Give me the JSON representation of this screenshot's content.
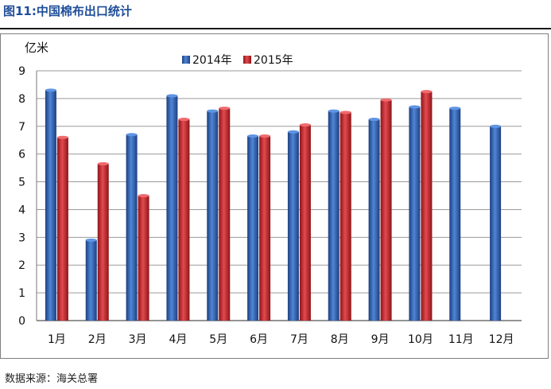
{
  "figure": {
    "title": "图11:中国棉布出口统计",
    "source": "数据来源：海关总署"
  },
  "colors": {
    "title": "#1f4e99",
    "series_2014": "#2f5fb0",
    "series_2015": "#c0282e"
  },
  "chart_data": {
    "type": "bar",
    "title": "",
    "xlabel": "",
    "ylabel": "亿米",
    "ylim": [
      0,
      9
    ],
    "yticks": [
      0,
      1,
      2,
      3,
      4,
      5,
      6,
      7,
      8,
      9
    ],
    "grid": true,
    "legend_position": "top-center",
    "categories": [
      "1月",
      "2月",
      "3月",
      "4月",
      "5月",
      "6月",
      "7月",
      "8月",
      "9月",
      "10月",
      "11月",
      "12月"
    ],
    "series": [
      {
        "name": "2014年",
        "values": [
          8.3,
          2.9,
          6.7,
          8.1,
          7.55,
          6.65,
          6.8,
          7.55,
          7.25,
          7.7,
          7.65,
          7.0
        ]
      },
      {
        "name": "2015年",
        "values": [
          6.6,
          5.65,
          4.5,
          7.25,
          7.65,
          6.65,
          7.05,
          7.5,
          7.95,
          8.25,
          null,
          null
        ]
      }
    ]
  }
}
